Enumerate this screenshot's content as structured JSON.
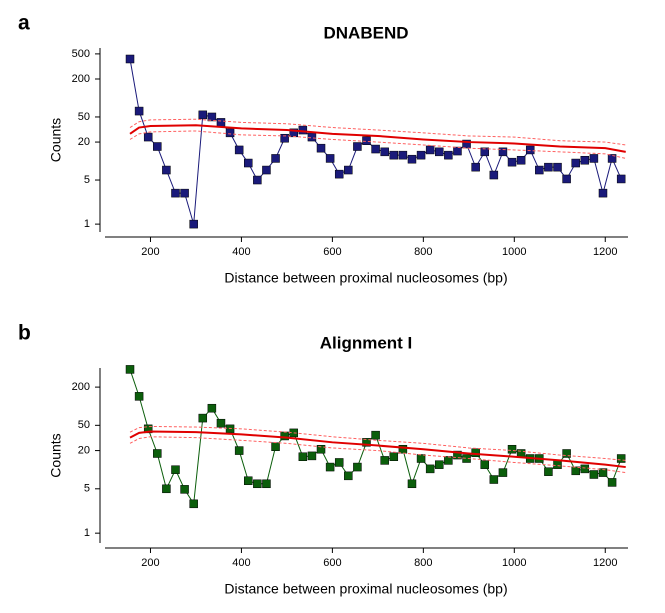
{
  "chart_data": [
    {
      "type": "line",
      "label": "a",
      "title": "DNABEND",
      "xlabel": "Distance between proximal nucleosomes (bp)",
      "ylabel": "Counts",
      "log_y": true,
      "xlim": [
        100,
        1250
      ],
      "ylim": [
        0.75,
        620
      ],
      "xticks": [
        200,
        400,
        600,
        800,
        1000,
        1200
      ],
      "yticks": [
        1,
        5,
        20,
        50,
        200,
        500
      ],
      "series": [
        {
          "color": "#1a1a7a",
          "style": "markers",
          "x": [
            155,
            175,
            195,
            215,
            235,
            255,
            275,
            295,
            315,
            335,
            355,
            375,
            395,
            415,
            435,
            455,
            475,
            495,
            515,
            535,
            555,
            575,
            595,
            615,
            635,
            655,
            675,
            695,
            715,
            735,
            755,
            775,
            795,
            815,
            835,
            855,
            875,
            895,
            915,
            935,
            955,
            975,
            995,
            1015,
            1035,
            1055,
            1075,
            1095,
            1115,
            1135,
            1155,
            1175,
            1195,
            1215,
            1235
          ],
          "values": [
            415,
            62,
            24,
            17,
            7.2,
            3.1,
            3.1,
            1,
            54,
            50,
            41,
            28,
            15,
            9.3,
            5,
            7.2,
            11,
            23,
            28,
            31,
            24,
            16,
            11,
            6.2,
            7.2,
            17,
            21,
            15.5,
            14,
            12.4,
            12.4,
            10.7,
            12.4,
            15,
            14,
            12.4,
            14.4,
            18.6,
            8,
            14,
            6,
            14,
            9.6,
            10.3,
            15,
            7.2,
            8,
            8,
            5.2,
            9.3,
            10.3,
            11,
            3.1,
            11,
            5.2
          ]
        },
        {
          "color": "#e00000",
          "style": "solid",
          "x": [
            155,
            175,
            200,
            300,
            400,
            500,
            600,
            700,
            800,
            900,
            1000,
            1100,
            1200,
            1245
          ],
          "values": [
            27,
            34,
            36,
            37,
            33,
            31,
            27,
            25,
            22,
            20,
            19,
            17,
            16,
            14
          ]
        },
        {
          "color": "#ff6060",
          "style": "dashed",
          "x": [
            155,
            175,
            200,
            300,
            400,
            500,
            600,
            700,
            800,
            900,
            1000,
            1100,
            1200,
            1245
          ],
          "values": [
            34,
            42,
            45,
            46,
            41,
            39,
            34,
            31,
            28,
            25,
            24,
            21,
            20,
            18
          ]
        },
        {
          "color": "#ff6060",
          "style": "dashed",
          "x": [
            155,
            175,
            200,
            300,
            400,
            500,
            600,
            700,
            800,
            900,
            1000,
            1100,
            1200,
            1245
          ],
          "values": [
            22,
            27,
            29,
            30,
            26,
            25,
            22,
            20,
            18,
            16,
            15,
            14,
            13,
            11
          ]
        }
      ]
    },
    {
      "type": "line",
      "label": "b",
      "title": "Alignment I",
      "xlabel": "Distance between proximal nucleosomes (bp)",
      "ylabel": "Counts",
      "log_y": true,
      "xlim": [
        100,
        1250
      ],
      "ylim": [
        0.7,
        400
      ],
      "xticks": [
        200,
        400,
        600,
        800,
        1000,
        1200
      ],
      "yticks": [
        1,
        5,
        20,
        50,
        200
      ],
      "series": [
        {
          "color": "#0b5e0b",
          "style": "markers",
          "x": [
            155,
            175,
            195,
            215,
            235,
            255,
            275,
            295,
            315,
            335,
            355,
            375,
            395,
            415,
            435,
            455,
            475,
            495,
            515,
            535,
            555,
            575,
            595,
            615,
            635,
            655,
            675,
            695,
            715,
            735,
            755,
            775,
            795,
            815,
            835,
            855,
            875,
            895,
            915,
            935,
            955,
            975,
            995,
            1015,
            1035,
            1055,
            1075,
            1095,
            1115,
            1135,
            1155,
            1175,
            1195,
            1215,
            1235
          ],
          "values": [
            380,
            143,
            44,
            18,
            5,
            10,
            4.9,
            2.9,
            65,
            93,
            54,
            44,
            20,
            6.7,
            6,
            6,
            23,
            34,
            38,
            16,
            16.5,
            21,
            11,
            13,
            8,
            11,
            27,
            35,
            14,
            16,
            21,
            6,
            15,
            10.3,
            12,
            14,
            17,
            15,
            18.5,
            12,
            7,
            9,
            21,
            18,
            15,
            15,
            9.3,
            12,
            18,
            9.6,
            10.3,
            8.4,
            9,
            6.3,
            15
          ]
        },
        {
          "color": "#e00000",
          "style": "solid",
          "x": [
            155,
            175,
            200,
            300,
            400,
            500,
            600,
            700,
            800,
            900,
            1000,
            1100,
            1200,
            1245
          ],
          "values": [
            32,
            38,
            40,
            39,
            36,
            32,
            27,
            24,
            21,
            18,
            16,
            14,
            12,
            11
          ]
        },
        {
          "color": "#ff6060",
          "style": "dashed",
          "x": [
            155,
            175,
            200,
            300,
            400,
            500,
            600,
            700,
            800,
            900,
            1000,
            1100,
            1200,
            1245
          ],
          "values": [
            39,
            46,
            48,
            47,
            44,
            39,
            33,
            29,
            26,
            22,
            20,
            17,
            15,
            14
          ]
        },
        {
          "color": "#ff6060",
          "style": "dashed",
          "x": [
            155,
            175,
            200,
            300,
            400,
            500,
            600,
            700,
            800,
            900,
            1000,
            1100,
            1200,
            1245
          ],
          "values": [
            26,
            31,
            33,
            32,
            29,
            26,
            22,
            20,
            17,
            15,
            13,
            11.5,
            10,
            9
          ]
        }
      ]
    }
  ]
}
